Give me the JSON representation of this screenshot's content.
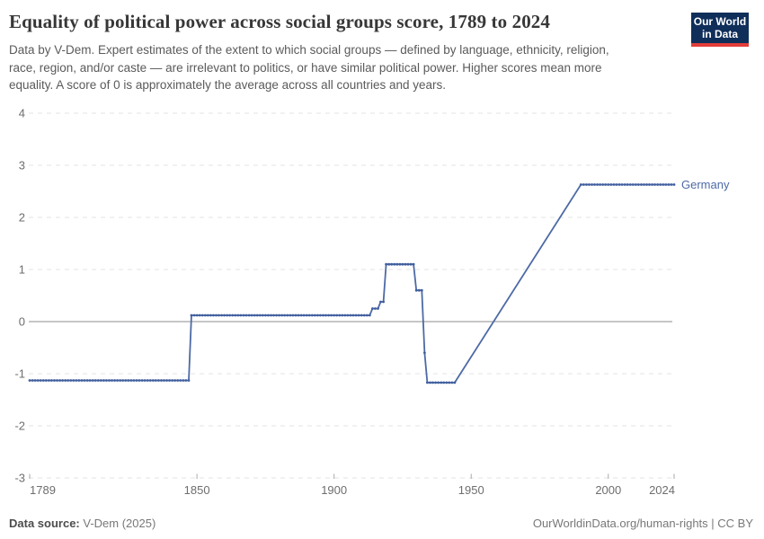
{
  "header": {
    "subtitle_lines": [
      "Data by V-Dem. Expert estimates of the extent to which social groups — defined by language, ethnicity, religion,",
      "race, region, and/or caste — are irrelevant to politics, or have similar political power. Higher scores mean more",
      "equality. A score of 0 is approximately the average across all countries and years."
    ],
    "logo": {
      "line1": "Our World",
      "line2": "in Data",
      "bg_color": "#0f2e5a",
      "bar_color": "#e23d3a"
    }
  },
  "footer": {
    "datasource_label": "Data source:",
    "datasource_value": "V-Dem (2025)",
    "attribution": "OurWorldinData.org/human-rights | CC BY"
  },
  "chart_data": {
    "type": "line",
    "title": "Equality of political power across social groups score, 1789 to 2024",
    "xlabel": "",
    "ylabel": "",
    "xlim": [
      1789,
      2024
    ],
    "ylim": [
      -3,
      4
    ],
    "yticks": [
      -3,
      -2,
      -1,
      0,
      1,
      2,
      3,
      4
    ],
    "xticks": [
      1789,
      1850,
      1900,
      1950,
      2000,
      2024
    ],
    "grid": "horizontal dashed gridlines, solid line at 0",
    "legend_position": "label at end of line",
    "colors": {
      "gridline": "#e3e3e3",
      "zero_line": "#8d8d8d",
      "tick_text": "#6e6e6e"
    },
    "series": [
      {
        "name": "Germany",
        "color": "#4d6aa5",
        "marker_color": "#3f5e9e",
        "marker_gap_years": [
          1945,
          1989
        ],
        "points": [
          [
            1789,
            -1.13
          ],
          [
            1847,
            -1.13
          ],
          [
            1848,
            0.12
          ],
          [
            1913,
            0.12
          ],
          [
            1914,
            0.25
          ],
          [
            1916,
            0.25
          ],
          [
            1917,
            0.38
          ],
          [
            1918,
            0.38
          ],
          [
            1919,
            1.1
          ],
          [
            1929,
            1.1
          ],
          [
            1930,
            0.6
          ],
          [
            1932,
            0.6
          ],
          [
            1933,
            -0.6
          ],
          [
            1934,
            -1.17
          ],
          [
            1944,
            -1.17
          ],
          [
            1990,
            2.63
          ],
          [
            2024,
            2.63
          ]
        ]
      }
    ]
  }
}
